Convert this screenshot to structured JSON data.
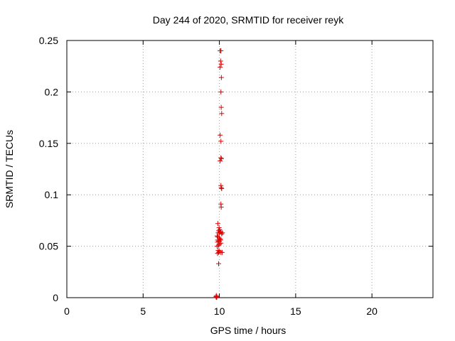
{
  "chart_data": {
    "type": "scatter",
    "title": "Day 244 of 2020, SRMTID for receiver reyk",
    "xlabel": "GPS time / hours",
    "ylabel": "SRMTID / TECUs",
    "xlim": [
      0,
      24
    ],
    "ylim": [
      0,
      0.25
    ],
    "xticks": [
      0,
      5,
      10,
      15,
      20
    ],
    "yticks": [
      0,
      0.05,
      0.1,
      0.15,
      0.2,
      0.25
    ],
    "xtick_labels": [
      "0",
      "5",
      "10",
      "15",
      "20"
    ],
    "ytick_labels": [
      "0",
      "0.05",
      "0.1",
      "0.15",
      "0.2",
      "0.25"
    ],
    "grid": true,
    "marker": "+",
    "color": "#dd0000",
    "series": [
      {
        "x": [
          10.05,
          10.1,
          10.08,
          10.12,
          10.05,
          10.13,
          10.1,
          10.12,
          10.15,
          10.05,
          10.1,
          10.1,
          10.13,
          10.05,
          10.1,
          10.12,
          10.15,
          10.1,
          10.12,
          9.9,
          9.98,
          10.02,
          9.95,
          10.05,
          10.1,
          9.92,
          10.0,
          10.2,
          10.15,
          9.85,
          9.9,
          10.0,
          10.05,
          10.08,
          9.88,
          9.95,
          10.0,
          9.88,
          10.1,
          10.0,
          9.95,
          9.85,
          9.92,
          10.0,
          9.95,
          9.88,
          10.18,
          10.1,
          9.95,
          9.8,
          9.82,
          9.78,
          9.8,
          9.83,
          9.8
        ],
        "y": [
          0.24,
          0.24,
          0.23,
          0.227,
          0.224,
          0.214,
          0.2,
          0.185,
          0.179,
          0.158,
          0.152,
          0.136,
          0.135,
          0.133,
          0.109,
          0.107,
          0.106,
          0.091,
          0.088,
          0.072,
          0.068,
          0.066,
          0.065,
          0.064,
          0.064,
          0.063,
          0.063,
          0.063,
          0.062,
          0.06,
          0.059,
          0.058,
          0.057,
          0.056,
          0.056,
          0.055,
          0.055,
          0.054,
          0.053,
          0.052,
          0.051,
          0.05,
          0.046,
          0.045,
          0.044,
          0.043,
          0.044,
          0.044,
          0.033,
          0.002,
          0.001,
          0.001,
          0.0005,
          0.0005,
          0.0002
        ]
      }
    ]
  }
}
